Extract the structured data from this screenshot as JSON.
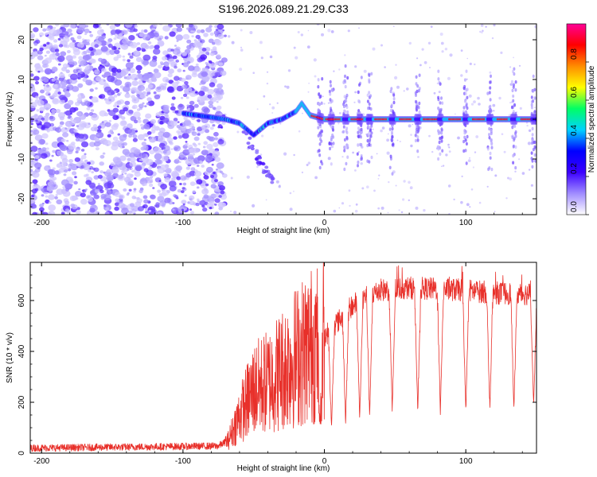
{
  "title": "S196.2026.089.21.29.C33",
  "chart_data": [
    {
      "type": "heatmap",
      "xlabel": "Height of straight line (km)",
      "ylabel": "Frequency (Hz)",
      "xlim": [
        -208,
        150
      ],
      "ylim": [
        -24,
        24
      ],
      "xticks": [
        -200,
        -100,
        0,
        100
      ],
      "yticks": [
        -20,
        -10,
        0,
        10,
        20
      ],
      "colorbar": {
        "label": "Normalized spectral amplitude",
        "range": [
          0,
          1
        ],
        "ticks": [
          0.0,
          0.2,
          0.4,
          0.6,
          0.8
        ],
        "colors": [
          "#ffffff",
          "#a08cff",
          "#3c00ff",
          "#0000ff",
          "#00d2ff",
          "#00ff64",
          "#ffff00",
          "#ff8c00",
          "#ff0000",
          "#ff0096"
        ]
      },
      "noise_region_km": [
        -208,
        -70
      ],
      "signal_track": [
        {
          "x": -100,
          "y": 1.5
        },
        {
          "x": -70,
          "y": 0
        },
        {
          "x": -60,
          "y": -1
        },
        {
          "x": -50,
          "y": -4
        },
        {
          "x": -40,
          "y": -1
        },
        {
          "x": -30,
          "y": 0
        },
        {
          "x": -20,
          "y": 2
        },
        {
          "x": -16,
          "y": 4
        },
        {
          "x": -10,
          "y": 1
        },
        {
          "x": 0,
          "y": 0
        },
        {
          "x": 150,
          "y": 0
        }
      ],
      "hot_segments_km": [
        [
          -9,
          0
        ],
        [
          1,
          12
        ],
        [
          19,
          28
        ],
        [
          36,
          45
        ],
        [
          53,
          62
        ],
        [
          70,
          80
        ],
        [
          88,
          97
        ],
        [
          105,
          114
        ],
        [
          122,
          130
        ],
        [
          139,
          146
        ]
      ],
      "nulls_km": [
        -3,
        5,
        15,
        25,
        32,
        48,
        66,
        82,
        100,
        117,
        134,
        148
      ]
    },
    {
      "type": "line",
      "xlabel": "Height of straight line (km)",
      "ylabel": "SNR (10 * v/v)",
      "xlim": [
        -208,
        150
      ],
      "ylim": [
        0,
        750
      ],
      "xticks": [
        -200,
        -100,
        0,
        100
      ],
      "yticks": [
        0,
        200,
        400,
        600
      ],
      "series": [
        {
          "name": "SNR",
          "color": "#e8302a",
          "envelope": [
            {
              "x": -208,
              "y": 20
            },
            {
              "x": -75,
              "y": 28
            },
            {
              "x": -68,
              "y": 50
            },
            {
              "x": -60,
              "y": 150
            },
            {
              "x": -50,
              "y": 250
            },
            {
              "x": -40,
              "y": 280
            },
            {
              "x": -30,
              "y": 330
            },
            {
              "x": -20,
              "y": 380
            },
            {
              "x": -10,
              "y": 420
            },
            {
              "x": 0,
              "y": 460
            },
            {
              "x": 10,
              "y": 520
            },
            {
              "x": 20,
              "y": 580
            },
            {
              "x": 30,
              "y": 620
            },
            {
              "x": 40,
              "y": 640
            },
            {
              "x": 60,
              "y": 650
            },
            {
              "x": 80,
              "y": 645
            },
            {
              "x": 100,
              "y": 640
            },
            {
              "x": 120,
              "y": 630
            },
            {
              "x": 150,
              "y": 625
            }
          ],
          "dropouts": [
            {
              "x": -3,
              "min": 90
            },
            {
              "x": 5,
              "min": 80
            },
            {
              "x": 15,
              "min": 100
            },
            {
              "x": 25,
              "min": 110
            },
            {
              "x": 32,
              "min": 120
            },
            {
              "x": 48,
              "min": 145
            },
            {
              "x": 66,
              "min": 140
            },
            {
              "x": 82,
              "min": 140
            },
            {
              "x": 100,
              "min": 140
            },
            {
              "x": 117,
              "min": 150
            },
            {
              "x": 134,
              "min": 150
            },
            {
              "x": 148,
              "min": 160
            }
          ]
        }
      ]
    }
  ]
}
